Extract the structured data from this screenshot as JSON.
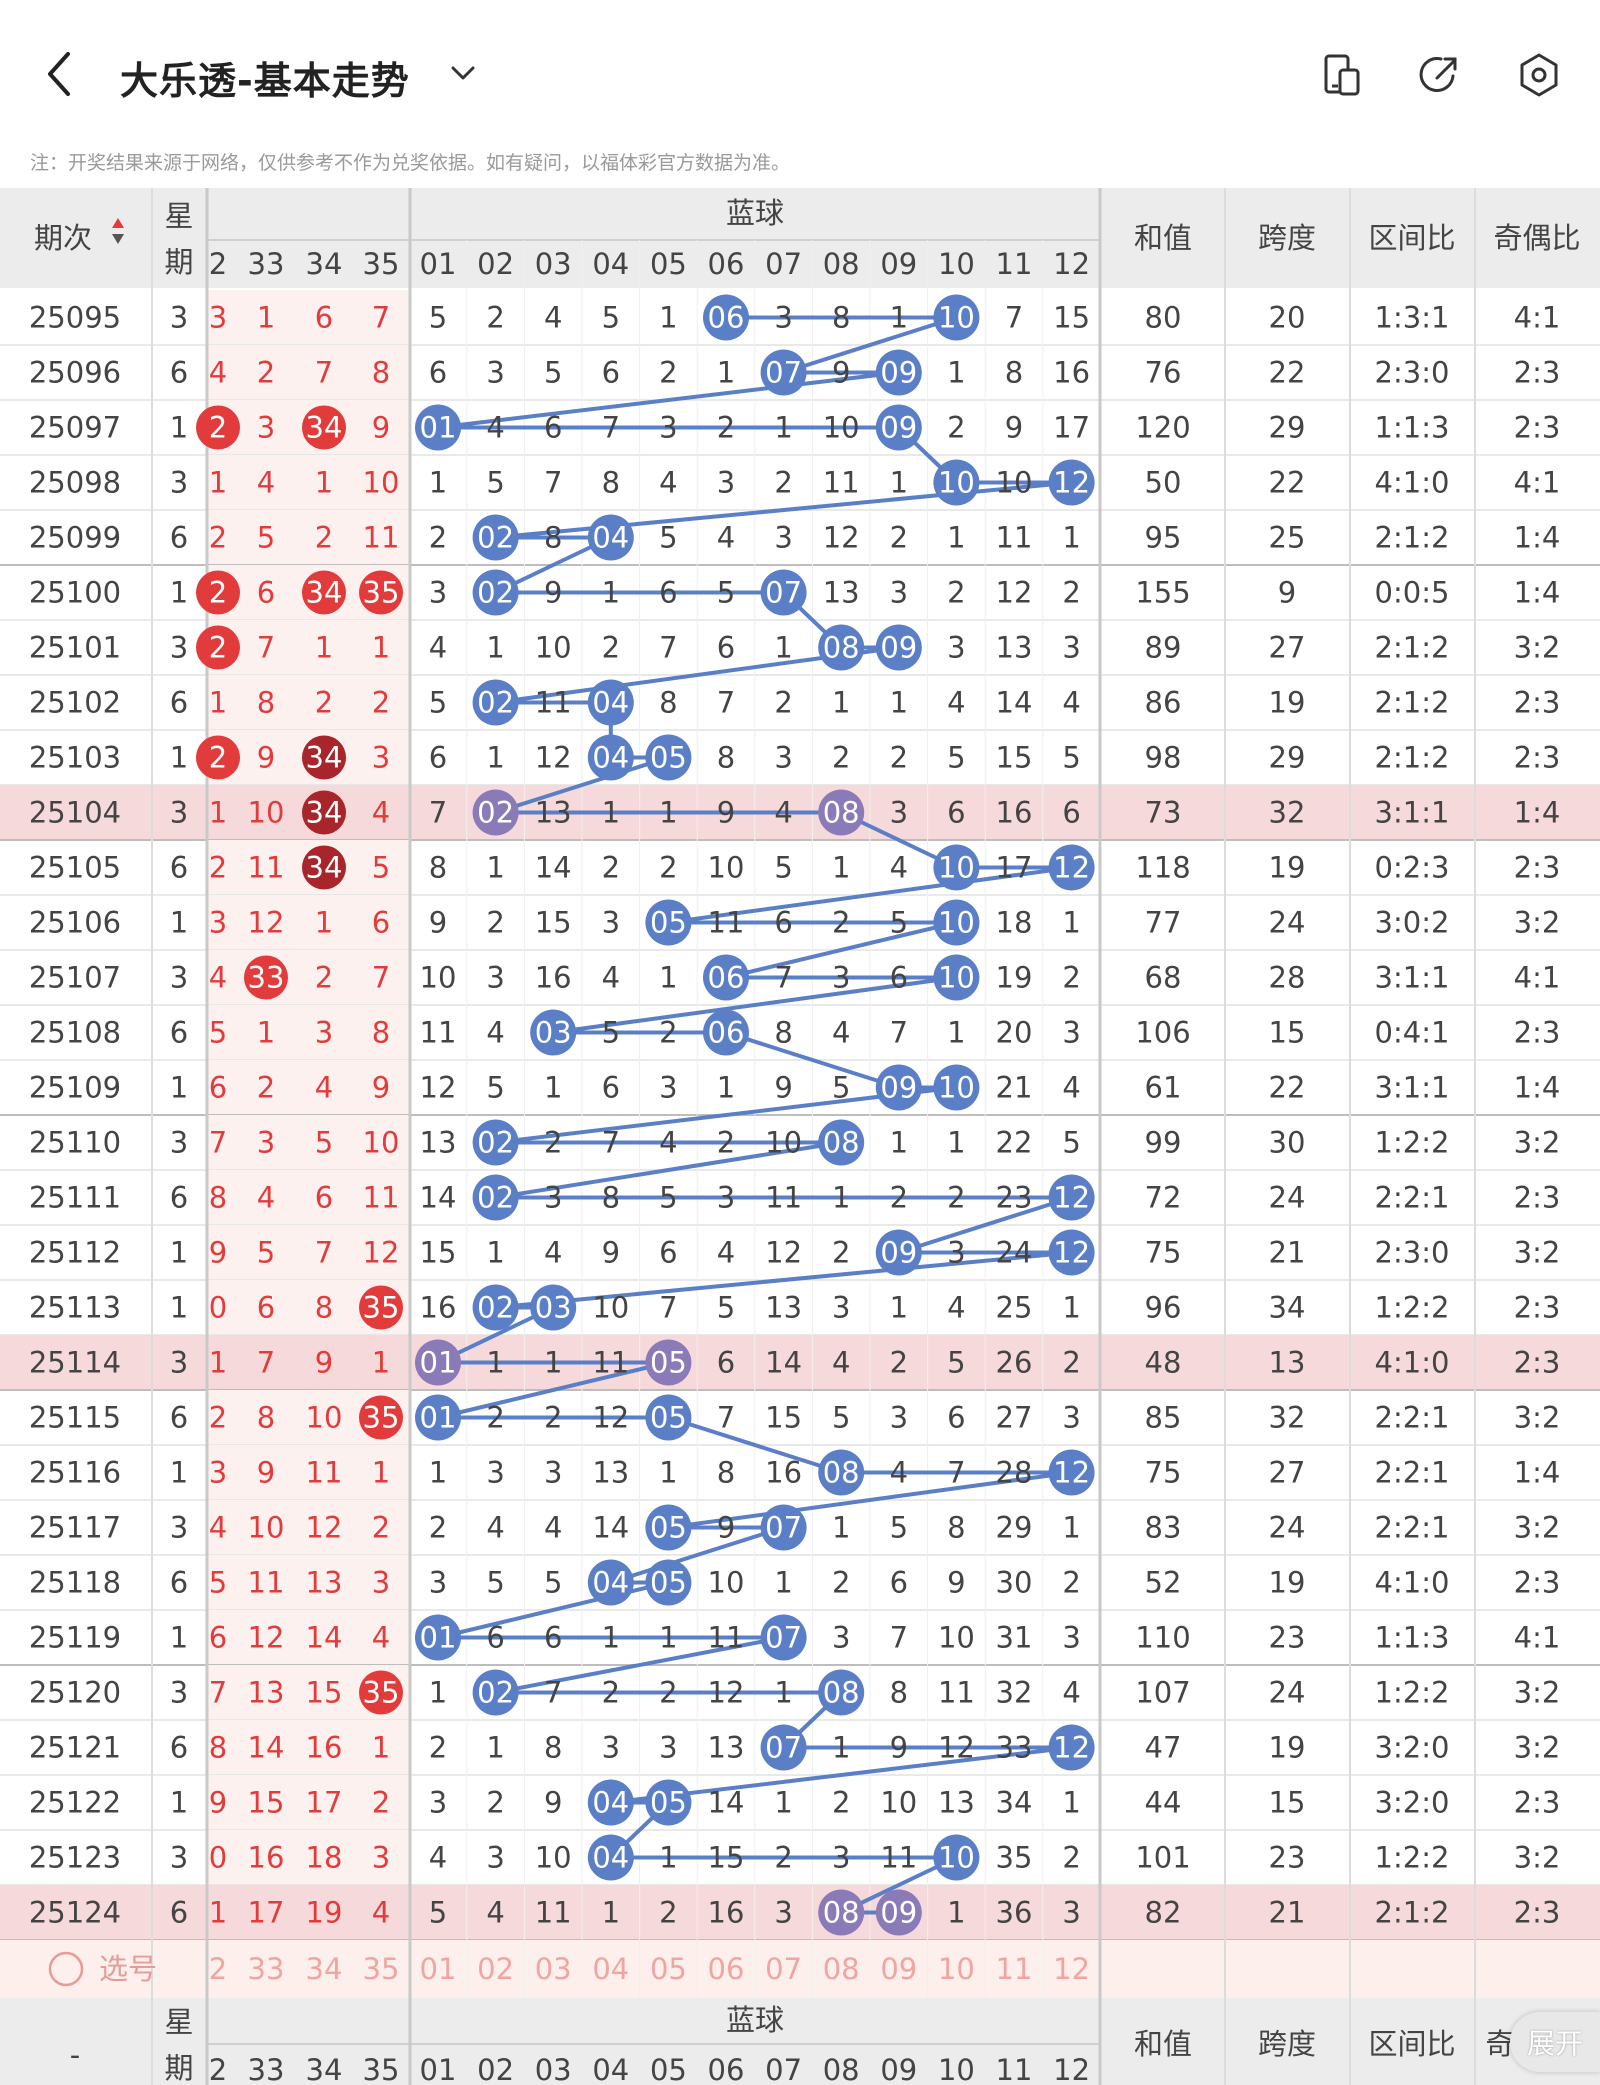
{
  "header": {
    "title": "大乐透-基本走势",
    "icons": [
      "back-icon",
      "chevron-down-icon",
      "phone-icon",
      "share-icon",
      "settings-icon"
    ]
  },
  "note": "注：开奖结果来源于网络，仅供参考不作为兑奖依据。如有疑问，以福体彩官方数据为准。",
  "columns": {
    "issue": "期次",
    "week": "星期",
    "front_headers": [
      "2",
      "33",
      "34",
      "35"
    ],
    "blue_group": "蓝球",
    "blue_headers": [
      "01",
      "02",
      "03",
      "04",
      "05",
      "06",
      "07",
      "08",
      "09",
      "10",
      "11",
      "12"
    ],
    "sum": "和值",
    "span": "跨度",
    "zone": "区间比",
    "oddeven": "奇偶比"
  },
  "colors": {
    "red": "#e23b3b",
    "dark_red": "#a8262b",
    "blue": "#5b7fc6",
    "purple": "#8a7bb8",
    "highlight_row": "#f6dadb",
    "header_bg": "#ececec",
    "select_bg": "#fdf0ec"
  },
  "rows": [
    {
      "issue": "25095",
      "week": "3",
      "f": [
        "3",
        "1",
        "6",
        "7"
      ],
      "fb": [],
      "b": [
        "5",
        "2",
        "4",
        "5",
        "1",
        "06",
        "3",
        "8",
        "1",
        "10",
        "7",
        "15"
      ],
      "blue": [
        6,
        10
      ],
      "sum": "80",
      "span": "20",
      "zone": "1:3:1",
      "oe": "4:1",
      "hl": false
    },
    {
      "issue": "25096",
      "week": "6",
      "f": [
        "4",
        "2",
        "7",
        "8"
      ],
      "fb": [],
      "b": [
        "6",
        "3",
        "5",
        "6",
        "2",
        "1",
        "07",
        "9",
        "09",
        "1",
        "8",
        "16"
      ],
      "blue": [
        7,
        9
      ],
      "sum": "76",
      "span": "22",
      "zone": "2:3:0",
      "oe": "2:3",
      "hl": false
    },
    {
      "issue": "25097",
      "week": "1",
      "f": [
        "2",
        "3",
        "34",
        "9"
      ],
      "fb": [
        0,
        2
      ],
      "b": [
        "01",
        "4",
        "6",
        "7",
        "3",
        "2",
        "1",
        "10",
        "09",
        "2",
        "9",
        "17"
      ],
      "blue": [
        1,
        9
      ],
      "sum": "120",
      "span": "29",
      "zone": "1:1:3",
      "oe": "2:3",
      "hl": false
    },
    {
      "issue": "25098",
      "week": "3",
      "f": [
        "1",
        "4",
        "1",
        "10"
      ],
      "fb": [],
      "b": [
        "1",
        "5",
        "7",
        "8",
        "4",
        "3",
        "2",
        "11",
        "1",
        "10",
        "10",
        "12"
      ],
      "blue": [
        10,
        12
      ],
      "sum": "50",
      "span": "22",
      "zone": "4:1:0",
      "oe": "4:1",
      "hl": false
    },
    {
      "issue": "25099",
      "week": "6",
      "f": [
        "2",
        "5",
        "2",
        "11"
      ],
      "fb": [],
      "b": [
        "2",
        "02",
        "8",
        "04",
        "5",
        "4",
        "3",
        "12",
        "2",
        "1",
        "11",
        "1"
      ],
      "blue": [
        2,
        4
      ],
      "sum": "95",
      "span": "25",
      "zone": "2:1:2",
      "oe": "1:4",
      "hl": false
    },
    {
      "issue": "25100",
      "week": "1",
      "f": [
        "2",
        "6",
        "34",
        "35"
      ],
      "fb": [
        0,
        2,
        3
      ],
      "b": [
        "3",
        "02",
        "9",
        "1",
        "6",
        "5",
        "07",
        "13",
        "3",
        "2",
        "12",
        "2"
      ],
      "blue": [
        2,
        7
      ],
      "sum": "155",
      "span": "9",
      "zone": "0:0:5",
      "oe": "1:4",
      "hl": false
    },
    {
      "issue": "25101",
      "week": "3",
      "f": [
        "2",
        "7",
        "1",
        "1"
      ],
      "fb": [
        0
      ],
      "b": [
        "4",
        "1",
        "10",
        "2",
        "7",
        "6",
        "1",
        "08",
        "09",
        "3",
        "13",
        "3"
      ],
      "blue": [
        8,
        9
      ],
      "sum": "89",
      "span": "27",
      "zone": "2:1:2",
      "oe": "3:2",
      "hl": false
    },
    {
      "issue": "25102",
      "week": "6",
      "f": [
        "1",
        "8",
        "2",
        "2"
      ],
      "fb": [],
      "b": [
        "5",
        "02",
        "11",
        "04",
        "8",
        "7",
        "2",
        "1",
        "1",
        "4",
        "14",
        "4"
      ],
      "blue": [
        2,
        4
      ],
      "sum": "86",
      "span": "19",
      "zone": "2:1:2",
      "oe": "2:3",
      "hl": false
    },
    {
      "issue": "25103",
      "week": "1",
      "f": [
        "2",
        "9",
        "34",
        "3"
      ],
      "fb": [
        0,
        2
      ],
      "b": [
        "6",
        "1",
        "12",
        "04",
        "05",
        "8",
        "3",
        "2",
        "2",
        "5",
        "15",
        "5"
      ],
      "blue": [
        4,
        5
      ],
      "sum": "98",
      "span": "29",
      "zone": "2:1:2",
      "oe": "2:3",
      "hl": false
    },
    {
      "issue": "25104",
      "week": "3",
      "f": [
        "1",
        "10",
        "34",
        "4"
      ],
      "fb": [
        2
      ],
      "b": [
        "7",
        "02",
        "13",
        "1",
        "1",
        "9",
        "4",
        "08",
        "3",
        "6",
        "16",
        "6"
      ],
      "blue": [
        2,
        8
      ],
      "sum": "73",
      "span": "32",
      "zone": "3:1:1",
      "oe": "1:4",
      "hl": true
    },
    {
      "issue": "25105",
      "week": "6",
      "f": [
        "2",
        "11",
        "34",
        "5"
      ],
      "fb": [
        2
      ],
      "b": [
        "8",
        "1",
        "14",
        "2",
        "2",
        "10",
        "5",
        "1",
        "4",
        "10",
        "17",
        "12"
      ],
      "blue": [
        10,
        12
      ],
      "sum": "118",
      "span": "19",
      "zone": "0:2:3",
      "oe": "2:3",
      "hl": false
    },
    {
      "issue": "25106",
      "week": "1",
      "f": [
        "3",
        "12",
        "1",
        "6"
      ],
      "fb": [],
      "b": [
        "9",
        "2",
        "15",
        "3",
        "05",
        "11",
        "6",
        "2",
        "5",
        "10",
        "18",
        "1"
      ],
      "blue": [
        5,
        10
      ],
      "sum": "77",
      "span": "24",
      "zone": "3:0:2",
      "oe": "3:2",
      "hl": false
    },
    {
      "issue": "25107",
      "week": "3",
      "f": [
        "4",
        "33",
        "2",
        "7"
      ],
      "fb": [
        1
      ],
      "b": [
        "10",
        "3",
        "16",
        "4",
        "1",
        "06",
        "7",
        "3",
        "6",
        "10",
        "19",
        "2"
      ],
      "blue": [
        6,
        10
      ],
      "sum": "68",
      "span": "28",
      "zone": "3:1:1",
      "oe": "4:1",
      "hl": false
    },
    {
      "issue": "25108",
      "week": "6",
      "f": [
        "5",
        "1",
        "3",
        "8"
      ],
      "fb": [],
      "b": [
        "11",
        "4",
        "03",
        "5",
        "2",
        "06",
        "8",
        "4",
        "7",
        "1",
        "20",
        "3"
      ],
      "blue": [
        3,
        6
      ],
      "sum": "106",
      "span": "15",
      "zone": "0:4:1",
      "oe": "2:3",
      "hl": false
    },
    {
      "issue": "25109",
      "week": "1",
      "f": [
        "6",
        "2",
        "4",
        "9"
      ],
      "fb": [],
      "b": [
        "12",
        "5",
        "1",
        "6",
        "3",
        "1",
        "9",
        "5",
        "09",
        "10",
        "21",
        "4"
      ],
      "blue": [
        9,
        10
      ],
      "sum": "61",
      "span": "22",
      "zone": "3:1:1",
      "oe": "1:4",
      "hl": false
    },
    {
      "issue": "25110",
      "week": "3",
      "f": [
        "7",
        "3",
        "5",
        "10"
      ],
      "fb": [],
      "b": [
        "13",
        "02",
        "2",
        "7",
        "4",
        "2",
        "10",
        "08",
        "1",
        "1",
        "22",
        "5"
      ],
      "blue": [
        2,
        8
      ],
      "sum": "99",
      "span": "30",
      "zone": "1:2:2",
      "oe": "3:2",
      "hl": false
    },
    {
      "issue": "25111",
      "week": "6",
      "f": [
        "8",
        "4",
        "6",
        "11"
      ],
      "fb": [],
      "b": [
        "14",
        "02",
        "3",
        "8",
        "5",
        "3",
        "11",
        "1",
        "2",
        "2",
        "23",
        "12"
      ],
      "blue": [
        2,
        12
      ],
      "sum": "72",
      "span": "24",
      "zone": "2:2:1",
      "oe": "2:3",
      "hl": false
    },
    {
      "issue": "25112",
      "week": "1",
      "f": [
        "9",
        "5",
        "7",
        "12"
      ],
      "fb": [],
      "b": [
        "15",
        "1",
        "4",
        "9",
        "6",
        "4",
        "12",
        "2",
        "09",
        "3",
        "24",
        "12"
      ],
      "blue": [
        9,
        12
      ],
      "sum": "75",
      "span": "21",
      "zone": "2:3:0",
      "oe": "3:2",
      "hl": false
    },
    {
      "issue": "25113",
      "week": "1",
      "f": [
        "0",
        "6",
        "8",
        "35"
      ],
      "fb": [
        3
      ],
      "b": [
        "16",
        "02",
        "03",
        "10",
        "7",
        "5",
        "13",
        "3",
        "1",
        "4",
        "25",
        "1"
      ],
      "blue": [
        2,
        3
      ],
      "sum": "96",
      "span": "34",
      "zone": "1:2:2",
      "oe": "2:3",
      "hl": false
    },
    {
      "issue": "25114",
      "week": "3",
      "f": [
        "1",
        "7",
        "9",
        "1"
      ],
      "fb": [],
      "b": [
        "01",
        "1",
        "1",
        "11",
        "05",
        "6",
        "14",
        "4",
        "2",
        "5",
        "26",
        "2"
      ],
      "blue": [
        1,
        5
      ],
      "sum": "48",
      "span": "13",
      "zone": "4:1:0",
      "oe": "2:3",
      "hl": true
    },
    {
      "issue": "25115",
      "week": "6",
      "f": [
        "2",
        "8",
        "10",
        "35"
      ],
      "fb": [
        3
      ],
      "b": [
        "01",
        "2",
        "2",
        "12",
        "05",
        "7",
        "15",
        "5",
        "3",
        "6",
        "27",
        "3"
      ],
      "blue": [
        1,
        5
      ],
      "sum": "85",
      "span": "32",
      "zone": "2:2:1",
      "oe": "3:2",
      "hl": false
    },
    {
      "issue": "25116",
      "week": "1",
      "f": [
        "3",
        "9",
        "11",
        "1"
      ],
      "fb": [],
      "b": [
        "1",
        "3",
        "3",
        "13",
        "1",
        "8",
        "16",
        "08",
        "4",
        "7",
        "28",
        "12"
      ],
      "blue": [
        8,
        12
      ],
      "sum": "75",
      "span": "27",
      "zone": "2:2:1",
      "oe": "1:4",
      "hl": false
    },
    {
      "issue": "25117",
      "week": "3",
      "f": [
        "4",
        "10",
        "12",
        "2"
      ],
      "fb": [],
      "b": [
        "2",
        "4",
        "4",
        "14",
        "05",
        "9",
        "07",
        "1",
        "5",
        "8",
        "29",
        "1"
      ],
      "blue": [
        5,
        7
      ],
      "sum": "83",
      "span": "24",
      "zone": "2:2:1",
      "oe": "3:2",
      "hl": false
    },
    {
      "issue": "25118",
      "week": "6",
      "f": [
        "5",
        "11",
        "13",
        "3"
      ],
      "fb": [],
      "b": [
        "3",
        "5",
        "5",
        "04",
        "05",
        "10",
        "1",
        "2",
        "6",
        "9",
        "30",
        "2"
      ],
      "blue": [
        4,
        5
      ],
      "sum": "52",
      "span": "19",
      "zone": "4:1:0",
      "oe": "2:3",
      "hl": false
    },
    {
      "issue": "25119",
      "week": "1",
      "f": [
        "6",
        "12",
        "14",
        "4"
      ],
      "fb": [],
      "b": [
        "01",
        "6",
        "6",
        "1",
        "1",
        "11",
        "07",
        "3",
        "7",
        "10",
        "31",
        "3"
      ],
      "blue": [
        1,
        7
      ],
      "sum": "110",
      "span": "23",
      "zone": "1:1:3",
      "oe": "4:1",
      "hl": false
    },
    {
      "issue": "25120",
      "week": "3",
      "f": [
        "7",
        "13",
        "15",
        "35"
      ],
      "fb": [
        3
      ],
      "b": [
        "1",
        "02",
        "7",
        "2",
        "2",
        "12",
        "1",
        "08",
        "8",
        "11",
        "32",
        "4"
      ],
      "blue": [
        2,
        8
      ],
      "sum": "107",
      "span": "24",
      "zone": "1:2:2",
      "oe": "3:2",
      "hl": false
    },
    {
      "issue": "25121",
      "week": "6",
      "f": [
        "8",
        "14",
        "16",
        "1"
      ],
      "fb": [],
      "b": [
        "2",
        "1",
        "8",
        "3",
        "3",
        "13",
        "07",
        "1",
        "9",
        "12",
        "33",
        "12"
      ],
      "blue": [
        7,
        12
      ],
      "sum": "47",
      "span": "19",
      "zone": "3:2:0",
      "oe": "3:2",
      "hl": false
    },
    {
      "issue": "25122",
      "week": "1",
      "f": [
        "9",
        "15",
        "17",
        "2"
      ],
      "fb": [],
      "b": [
        "3",
        "2",
        "9",
        "04",
        "05",
        "14",
        "1",
        "2",
        "10",
        "13",
        "34",
        "1"
      ],
      "blue": [
        4,
        5
      ],
      "sum": "44",
      "span": "15",
      "zone": "3:2:0",
      "oe": "2:3",
      "hl": false
    },
    {
      "issue": "25123",
      "week": "3",
      "f": [
        "0",
        "16",
        "18",
        "3"
      ],
      "fb": [],
      "b": [
        "4",
        "3",
        "10",
        "04",
        "1",
        "15",
        "2",
        "3",
        "11",
        "10",
        "35",
        "2"
      ],
      "blue": [
        4,
        10
      ],
      "sum": "101",
      "span": "23",
      "zone": "1:2:2",
      "oe": "3:2",
      "hl": false
    },
    {
      "issue": "25124",
      "week": "6",
      "f": [
        "1",
        "17",
        "19",
        "4"
      ],
      "fb": [],
      "b": [
        "5",
        "4",
        "11",
        "1",
        "2",
        "16",
        "3",
        "08",
        "09",
        "1",
        "36",
        "3"
      ],
      "blue": [
        8,
        9
      ],
      "sum": "82",
      "span": "21",
      "zone": "2:1:2",
      "oe": "2:3",
      "hl": true
    }
  ],
  "select": {
    "label": "选号",
    "front": [
      "2",
      "33",
      "34",
      "35"
    ],
    "blue": [
      "01",
      "02",
      "03",
      "04",
      "05",
      "06",
      "07",
      "08",
      "09",
      "10",
      "11",
      "12"
    ]
  },
  "footer": {
    "issue": "-",
    "zone_partial": "奇",
    "expand": "展开"
  }
}
